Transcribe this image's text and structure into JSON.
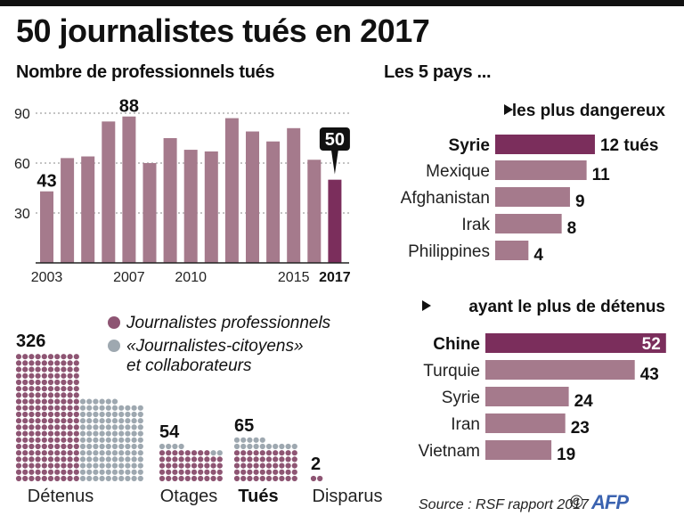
{
  "header": {
    "title": "50 journalistes tués en 2017",
    "left_subtitle": "Nombre de professionnels tués",
    "right_subtitle": "Les 5 pays ..."
  },
  "colors": {
    "bar": "#a57a8c",
    "highlight": "#7b2e5c",
    "professional_dot": "#8e5573",
    "citizen_dot": "#9ea8b0",
    "text": "#111111",
    "afp_blue": "#3b63b0"
  },
  "chart_data": [
    {
      "type": "bar",
      "title": "Nombre de professionnels tués",
      "categories": [
        "2003",
        "2004",
        "2005",
        "2006",
        "2007",
        "2008",
        "2009",
        "2010",
        "2011",
        "2012",
        "2013",
        "2014",
        "2015",
        "2016",
        "2017"
      ],
      "values": [
        43,
        63,
        64,
        85,
        88,
        60,
        75,
        68,
        67,
        87,
        79,
        73,
        81,
        62,
        50
      ],
      "highlight_category": "2017",
      "data_labels": {
        "2003": "43",
        "2007": "88",
        "2017": "50"
      },
      "x_tick_labels": [
        "2003",
        "2007",
        "2010",
        "2015",
        "2017"
      ],
      "y_ticks": [
        30,
        60,
        90
      ],
      "ylim": [
        0,
        95
      ],
      "grid": "dotted horizontal",
      "xlabel": "",
      "ylabel": ""
    },
    {
      "type": "bar",
      "orientation": "horizontal",
      "title": "les plus dangereux",
      "categories": [
        "Syrie",
        "Mexique",
        "Afghanistan",
        "Irak",
        "Philippines"
      ],
      "values": [
        12,
        11,
        9,
        8,
        4
      ],
      "value_labels": [
        "12 tués",
        "11",
        "9",
        "8",
        "4"
      ],
      "highlight_category": "Syrie"
    },
    {
      "type": "bar",
      "orientation": "horizontal",
      "title": "ayant le plus de détenus",
      "categories": [
        "Chine",
        "Turquie",
        "Syrie",
        "Iran",
        "Vietnam"
      ],
      "values": [
        52,
        43,
        24,
        23,
        19
      ],
      "value_labels": [
        "52",
        "43",
        "24",
        "23",
        "19"
      ],
      "highlight_category": "Chine"
    },
    {
      "type": "waffle",
      "title": "",
      "legend": [
        {
          "name": "Journalistes professionnels",
          "color_key": "professional_dot"
        },
        {
          "name": "«Journalistes-citoyens» et collaborateurs",
          "color_key": "citizen_dot"
        }
      ],
      "groups": [
        {
          "label": "Détenus",
          "total": 326,
          "professional": 202,
          "citizen": 124,
          "bold": false
        },
        {
          "label": "Otages",
          "total": 54,
          "professional": 48,
          "citizen": 6,
          "bold": false
        },
        {
          "label": "Tués",
          "total": 65,
          "professional": 50,
          "citizen": 15,
          "bold": true
        },
        {
          "label": "Disparus",
          "total": 2,
          "professional": 2,
          "citizen": 0,
          "bold": false
        }
      ]
    }
  ],
  "sections": {
    "dangerous_title": "les plus dangereux",
    "detained_title": "ayant le plus de détenus",
    "legend_professional": "Journalistes professionnels",
    "legend_citizen_line1": "«Journalistes-citoyens»",
    "legend_citizen_line2": "et collaborateurs"
  },
  "footer": {
    "source": "Source : RSF rapport 2017",
    "copyright": "©",
    "logo": "AFP"
  }
}
